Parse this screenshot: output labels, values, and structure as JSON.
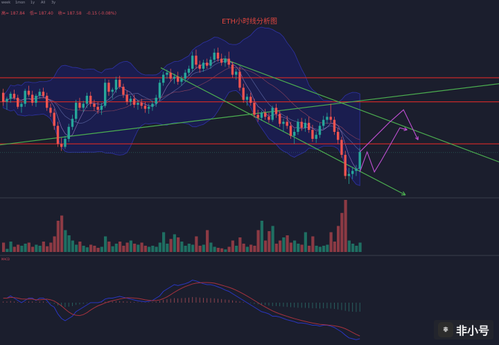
{
  "toolbar": {
    "timeframes": [
      "week",
      "1mon",
      "1y",
      "All",
      "3y"
    ]
  },
  "ohlc": {
    "high": "高= 187.84",
    "low": "低= 187.40",
    "close": "收= 187.58",
    "change": "-0.15 (-0.08%)"
  },
  "chart_title": "ETH小时线分析图",
  "macd_label": "MACD",
  "watermark": {
    "logo_text": "非",
    "text": "非小号"
  },
  "colors": {
    "background": "#1b1e2d",
    "up": "#26a69a",
    "down": "#ef5350",
    "resistance": "#c62828",
    "trend": "#4caf50",
    "arrow": "#c04fd3",
    "band": "#1a1d6b"
  },
  "chart_data": {
    "type": "candlestick",
    "candles": [
      [
        184.5,
        184.9,
        183.2,
        183.6
      ],
      [
        183.6,
        184.1,
        182.8,
        183.9
      ],
      [
        183.9,
        184.6,
        183.5,
        184.4
      ],
      [
        184.4,
        184.8,
        183.8,
        184.0
      ],
      [
        184.0,
        184.3,
        182.9,
        183.1
      ],
      [
        183.1,
        183.6,
        182.5,
        183.4
      ],
      [
        183.4,
        184.9,
        183.1,
        184.7
      ],
      [
        184.7,
        185.2,
        184.1,
        184.3
      ],
      [
        184.3,
        184.7,
        183.2,
        183.5
      ],
      [
        183.5,
        184.4,
        183.1,
        184.2
      ],
      [
        184.2,
        184.9,
        183.9,
        184.6
      ],
      [
        184.6,
        185.0,
        184.0,
        184.2
      ],
      [
        184.2,
        184.5,
        182.7,
        183.0
      ],
      [
        183.0,
        183.4,
        182.1,
        182.5
      ],
      [
        182.5,
        182.9,
        180.8,
        181.2
      ],
      [
        181.2,
        181.6,
        179.1,
        179.4
      ],
      [
        179.4,
        180.0,
        178.7,
        179.1
      ],
      [
        179.1,
        180.2,
        178.9,
        179.9
      ],
      [
        179.9,
        181.4,
        179.6,
        181.1
      ],
      [
        181.1,
        182.3,
        180.8,
        181.9
      ],
      [
        181.9,
        183.8,
        181.6,
        183.5
      ],
      [
        183.5,
        184.0,
        182.8,
        183.0
      ],
      [
        183.0,
        183.7,
        182.6,
        183.4
      ],
      [
        183.4,
        184.5,
        183.0,
        184.2
      ],
      [
        184.2,
        184.6,
        183.1,
        183.4
      ],
      [
        183.4,
        183.8,
        182.7,
        183.1
      ],
      [
        183.1,
        183.6,
        182.4,
        182.8
      ],
      [
        182.8,
        183.5,
        182.3,
        183.2
      ],
      [
        183.2,
        185.9,
        183.0,
        185.5
      ],
      [
        185.5,
        185.8,
        184.2,
        184.6
      ],
      [
        184.6,
        185.0,
        183.9,
        184.8
      ],
      [
        184.8,
        186.1,
        184.5,
        185.8
      ],
      [
        185.8,
        186.2,
        184.9,
        185.1
      ],
      [
        185.1,
        185.4,
        184.0,
        184.3
      ],
      [
        184.3,
        184.7,
        183.3,
        183.6
      ],
      [
        183.6,
        184.2,
        183.2,
        183.9
      ],
      [
        183.9,
        184.3,
        183.0,
        183.3
      ],
      [
        183.3,
        183.8,
        182.8,
        183.5
      ],
      [
        183.5,
        183.9,
        182.9,
        183.2
      ],
      [
        183.2,
        183.6,
        182.5,
        182.9
      ],
      [
        182.9,
        183.4,
        182.4,
        183.1
      ],
      [
        183.1,
        183.7,
        182.7,
        183.4
      ],
      [
        183.4,
        184.3,
        183.1,
        184.0
      ],
      [
        184.0,
        185.8,
        183.7,
        185.5
      ],
      [
        185.5,
        186.6,
        185.2,
        186.3
      ],
      [
        186.3,
        186.8,
        185.9,
        186.5
      ],
      [
        186.5,
        186.9,
        185.6,
        185.9
      ],
      [
        185.9,
        186.4,
        185.4,
        186.1
      ],
      [
        186.1,
        186.6,
        185.3,
        185.6
      ],
      [
        185.6,
        186.2,
        185.2,
        185.9
      ],
      [
        185.9,
        186.8,
        185.6,
        186.5
      ],
      [
        186.5,
        187.2,
        186.2,
        186.9
      ],
      [
        186.9,
        188.6,
        186.6,
        188.2
      ],
      [
        188.2,
        188.8,
        186.9,
        187.3
      ],
      [
        187.3,
        187.7,
        186.5,
        186.9
      ],
      [
        186.9,
        187.8,
        186.6,
        187.5
      ],
      [
        187.5,
        187.9,
        186.9,
        187.2
      ],
      [
        187.2,
        188.1,
        186.9,
        187.8
      ],
      [
        187.8,
        188.9,
        187.5,
        188.5
      ],
      [
        188.5,
        189.0,
        187.6,
        187.9
      ],
      [
        187.9,
        188.4,
        187.2,
        187.5
      ],
      [
        187.5,
        188.2,
        187.1,
        187.9
      ],
      [
        187.9,
        188.6,
        187.0,
        187.3
      ],
      [
        187.3,
        187.6,
        186.0,
        186.3
      ],
      [
        186.3,
        186.9,
        185.8,
        186.6
      ],
      [
        186.6,
        187.1,
        184.7,
        185.0
      ],
      [
        185.0,
        185.4,
        183.5,
        183.8
      ],
      [
        183.8,
        184.4,
        183.2,
        184.1
      ],
      [
        184.1,
        184.5,
        183.2,
        183.5
      ],
      [
        183.5,
        183.9,
        182.0,
        182.3
      ],
      [
        182.3,
        182.8,
        181.6,
        182.0
      ],
      [
        182.0,
        182.7,
        181.7,
        182.5
      ],
      [
        182.5,
        182.9,
        181.8,
        182.1
      ],
      [
        182.1,
        182.5,
        181.5,
        181.8
      ],
      [
        181.8,
        183.2,
        181.6,
        183.0
      ],
      [
        183.0,
        183.4,
        182.0,
        182.4
      ],
      [
        182.4,
        182.7,
        181.1,
        181.4
      ],
      [
        181.4,
        181.9,
        180.6,
        181.6
      ],
      [
        181.6,
        182.2,
        180.9,
        181.2
      ],
      [
        181.2,
        181.6,
        179.9,
        180.2
      ],
      [
        180.2,
        180.9,
        179.4,
        180.6
      ],
      [
        180.6,
        181.9,
        180.3,
        181.6
      ],
      [
        181.6,
        182.0,
        180.7,
        181.0
      ],
      [
        181.0,
        181.9,
        180.6,
        181.5
      ],
      [
        181.5,
        182.1,
        180.5,
        180.8
      ],
      [
        180.8,
        181.3,
        179.6,
        179.9
      ],
      [
        179.9,
        180.6,
        179.5,
        180.3
      ],
      [
        180.3,
        181.5,
        180.0,
        181.2
      ],
      [
        181.2,
        182.2,
        180.9,
        181.8
      ],
      [
        181.8,
        182.5,
        181.4,
        182.1
      ],
      [
        182.1,
        183.4,
        181.5,
        181.8
      ],
      [
        181.8,
        182.1,
        180.3,
        180.6
      ],
      [
        180.6,
        181.0,
        179.4,
        179.8
      ],
      [
        179.8,
        180.1,
        178.0,
        178.3
      ],
      [
        178.3,
        178.7,
        175.9,
        176.2
      ],
      [
        176.2,
        177.0,
        175.4,
        176.4
      ],
      [
        176.4,
        177.1,
        175.9,
        176.7
      ],
      [
        176.7,
        177.3,
        176.2,
        176.9
      ],
      [
        176.9,
        179.0,
        176.6,
        178.6
      ]
    ],
    "resistance_lines": [
      186.0,
      183.6,
      179.4
    ],
    "overlay_lines": 3,
    "volume": [
      18,
      6,
      20,
      10,
      14,
      12,
      16,
      18,
      10,
      14,
      12,
      20,
      11,
      18,
      30,
      60,
      70,
      42,
      32,
      22,
      14,
      20,
      12,
      9,
      14,
      12,
      8,
      10,
      30,
      20,
      11,
      16,
      20,
      12,
      18,
      22,
      16,
      14,
      18,
      12,
      10,
      12,
      10,
      18,
      38,
      16,
      25,
      34,
      28,
      20,
      12,
      16,
      14,
      30,
      12,
      14,
      42,
      18,
      10,
      8,
      7,
      5,
      10,
      22,
      12,
      28,
      16,
      10,
      14,
      12,
      42,
      60,
      22,
      40,
      50,
      16,
      22,
      28,
      32,
      18,
      22,
      16,
      14,
      38,
      12,
      30,
      12,
      10,
      12,
      14,
      38,
      20,
      50,
      75,
      100,
      22,
      16,
      12,
      18
    ],
    "macd": [
      0.1,
      0.1,
      0.15,
      0.1,
      0.05,
      0,
      0.05,
      0.1,
      0.1,
      0.05,
      0.1,
      0.1,
      0.05,
      -0.05,
      -0.1,
      -0.25,
      -0.35,
      -0.4,
      -0.35,
      -0.3,
      -0.2,
      -0.15,
      -0.1,
      -0.05,
      0,
      0,
      0,
      0.02,
      0.08,
      0.1,
      0.1,
      0.12,
      0.14,
      0.12,
      0.1,
      0.08,
      0.06,
      0.04,
      0.03,
      0.02,
      0.03,
      0.05,
      0.1,
      0.15,
      0.25,
      0.3,
      0.35,
      0.4,
      0.38,
      0.4,
      0.42,
      0.45,
      0.5,
      0.48,
      0.45,
      0.42,
      0.4,
      0.4,
      0.38,
      0.35,
      0.32,
      0.28,
      0.25,
      0.2,
      0.15,
      0.1,
      0.05,
      0,
      -0.05,
      -0.1,
      -0.15,
      -0.2,
      -0.22,
      -0.25,
      -0.3,
      -0.3,
      -0.32,
      -0.35,
      -0.38,
      -0.4,
      -0.42,
      -0.45,
      -0.45,
      -0.46,
      -0.48,
      -0.5,
      -0.5,
      -0.52,
      -0.5,
      -0.5,
      -0.52,
      -0.55,
      -0.6,
      -0.65,
      -0.72,
      -0.78,
      -0.8,
      -0.82,
      -0.8
    ],
    "projection_1": [
      [
        176.6,
        0
      ],
      [
        178.6,
        2
      ],
      [
        176.6,
        4
      ],
      [
        177.8,
        6
      ],
      [
        181.0,
        11
      ],
      [
        180.8,
        13
      ]
    ],
    "projection_2": [
      [
        178.6,
        0
      ],
      [
        181.5,
        8
      ],
      [
        182.8,
        12
      ],
      [
        179.8,
        16
      ]
    ]
  }
}
